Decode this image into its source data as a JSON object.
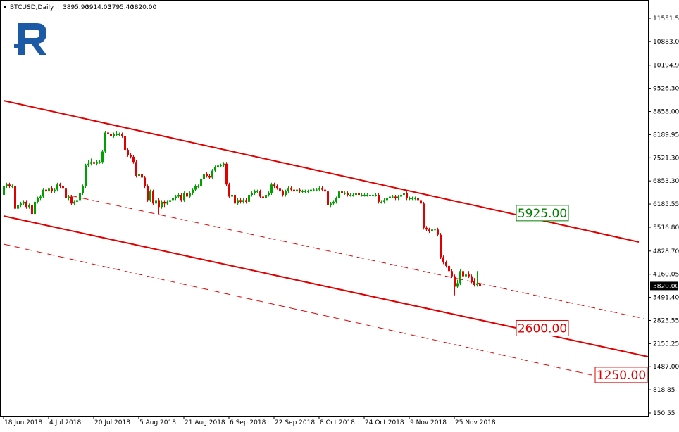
{
  "chart_data": {
    "type": "candlestick",
    "symbol": "BTCUSD,Daily",
    "header_values": [
      "3895.90",
      "3914.00",
      "3795.40",
      "3820.00"
    ],
    "up_color": "#00a000",
    "down_color": "#e00000",
    "ylim": [
      49,
      12039
    ],
    "yticks": [
      {
        "value": 11551.5,
        "label": "11551.50"
      },
      {
        "value": 10883.05,
        "label": "10883.05"
      },
      {
        "value": 10194.95,
        "label": "10194.95"
      },
      {
        "value": 9526.3,
        "label": "9526.30"
      },
      {
        "value": 8858,
        "label": "8858.00"
      },
      {
        "value": 8189.95,
        "label": "8189.95"
      },
      {
        "value": 7521.3,
        "label": "7521.30"
      },
      {
        "value": 6853.3,
        "label": "6853.30"
      },
      {
        "value": 6185.55,
        "label": "6185.55"
      },
      {
        "value": 5516.8,
        "label": "5516.80"
      },
      {
        "value": 4828.7,
        "label": "4828.70"
      },
      {
        "value": 4160.05,
        "label": "4160.05"
      },
      {
        "value": 3491.4,
        "label": "3491.40"
      },
      {
        "value": 2823.55,
        "label": "2823.55"
      },
      {
        "value": 2155.25,
        "label": "2155.25"
      },
      {
        "value": 1487,
        "label": "1487.00"
      },
      {
        "value": 818.85,
        "label": "818.85"
      },
      {
        "value": 150.55,
        "label": "150.55"
      }
    ],
    "last_price": {
      "value": 3820,
      "label": "3820.00"
    },
    "levels": [
      {
        "value": 5925,
        "label": "5925.00",
        "color": "#008000"
      },
      {
        "value": 2600,
        "label": "2600.00",
        "color": "#e00000"
      },
      {
        "value": 1250,
        "label": "1250.00",
        "color": "#e00000"
      }
    ],
    "categories": [
      "18 Jun 2018",
      null,
      null,
      null,
      null,
      null,
      null,
      null,
      null,
      null,
      null,
      null,
      null,
      null,
      null,
      null,
      "4 Jul 2018",
      null,
      null,
      null,
      null,
      null,
      null,
      null,
      null,
      null,
      null,
      null,
      null,
      null,
      null,
      null,
      "20 Jul 2018",
      null,
      null,
      null,
      null,
      null,
      null,
      null,
      null,
      null,
      null,
      null,
      null,
      null,
      null,
      null,
      "5 Aug 2018",
      null,
      null,
      null,
      null,
      null,
      null,
      null,
      null,
      null,
      null,
      null,
      null,
      null,
      null,
      null,
      "21 Aug 2018",
      null,
      null,
      null,
      null,
      null,
      null,
      null,
      null,
      null,
      null,
      null,
      null,
      null,
      null,
      null,
      "6 Sep 2018",
      null,
      null,
      null,
      null,
      null,
      null,
      null,
      null,
      null,
      null,
      null,
      null,
      null,
      null,
      null,
      "22 Sep 2018",
      null,
      null,
      null,
      null,
      null,
      null,
      null,
      null,
      null,
      null,
      null,
      null,
      null,
      null,
      null,
      "8 Oct 2018",
      null,
      null,
      null,
      null,
      null,
      null,
      null,
      null,
      null,
      null,
      null,
      null,
      null,
      null,
      null,
      "24 Oct 2018",
      null,
      null,
      null,
      null,
      null,
      null,
      null,
      null,
      null,
      null,
      null,
      null,
      null,
      null,
      null,
      "9 Nov 2018",
      null,
      null,
      null,
      null,
      null,
      null,
      null,
      null,
      null,
      null,
      null,
      null,
      null,
      null,
      null,
      "25 Nov 2018",
      null,
      null,
      null,
      null,
      null,
      null,
      null,
      null,
      null
    ],
    "ohlc": [
      [
        6450,
        6750,
        6400,
        6700
      ],
      [
        6700,
        6800,
        6650,
        6750
      ],
      [
        6750,
        6800,
        6650,
        6700
      ],
      [
        6700,
        6750,
        6650,
        6700
      ],
      [
        6700,
        6750,
        6000,
        6050
      ],
      [
        6050,
        6200,
        6000,
        6150
      ],
      [
        6150,
        6250,
        6100,
        6200
      ],
      [
        6200,
        6300,
        6150,
        6250
      ],
      [
        6250,
        6300,
        6050,
        6100
      ],
      [
        6100,
        6200,
        6050,
        6150
      ],
      [
        6150,
        6200,
        5850,
        5900
      ],
      [
        5900,
        6300,
        5850,
        6250
      ],
      [
        6250,
        6400,
        6200,
        6350
      ],
      [
        6350,
        6450,
        6300,
        6400
      ],
      [
        6400,
        6650,
        6350,
        6600
      ],
      [
        6600,
        6650,
        6500,
        6550
      ],
      [
        6550,
        6700,
        6500,
        6650
      ],
      [
        6650,
        6700,
        6500,
        6550
      ],
      [
        6550,
        6650,
        6500,
        6600
      ],
      [
        6600,
        6800,
        6550,
        6750
      ],
      [
        6750,
        6800,
        6650,
        6700
      ],
      [
        6700,
        6750,
        6600,
        6650
      ],
      [
        6650,
        6700,
        6300,
        6350
      ],
      [
        6350,
        6450,
        6300,
        6400
      ],
      [
        6400,
        6450,
        6150,
        6200
      ],
      [
        6200,
        6300,
        6150,
        6250
      ],
      [
        6250,
        6350,
        6200,
        6300
      ],
      [
        6300,
        6550,
        6250,
        6500
      ],
      [
        6500,
        6750,
        6450,
        6700
      ],
      [
        6700,
        7350,
        6650,
        7300
      ],
      [
        7300,
        7450,
        7250,
        7350
      ],
      [
        7350,
        7500,
        7300,
        7400
      ],
      [
        7400,
        7450,
        7300,
        7350
      ],
      [
        7350,
        7450,
        7300,
        7400
      ],
      [
        7400,
        7450,
        7350,
        7400
      ],
      [
        7400,
        7750,
        7350,
        7700
      ],
      [
        7700,
        8300,
        7650,
        8250
      ],
      [
        8250,
        8450,
        8150,
        8200
      ],
      [
        8200,
        8300,
        8100,
        8150
      ],
      [
        8150,
        8250,
        8100,
        8200
      ],
      [
        8200,
        8300,
        8150,
        8200
      ],
      [
        8200,
        8250,
        8150,
        8200
      ],
      [
        8200,
        8250,
        8100,
        8150
      ],
      [
        8150,
        8200,
        7700,
        7750
      ],
      [
        7750,
        7800,
        7550,
        7600
      ],
      [
        7600,
        7650,
        7500,
        7550
      ],
      [
        7550,
        7600,
        7350,
        7400
      ],
      [
        7400,
        7450,
        6950,
        7000
      ],
      [
        7000,
        7100,
        6950,
        7050
      ],
      [
        7050,
        7100,
        6900,
        6950
      ],
      [
        6950,
        7000,
        6650,
        6700
      ],
      [
        6700,
        6750,
        6250,
        6300
      ],
      [
        6300,
        6600,
        6250,
        6550
      ],
      [
        6550,
        6600,
        6150,
        6200
      ],
      [
        6200,
        6350,
        6150,
        6300
      ],
      [
        6300,
        6350,
        5900,
        6100
      ],
      [
        6100,
        6300,
        6050,
        6250
      ],
      [
        6250,
        6300,
        6100,
        6200
      ],
      [
        6200,
        6300,
        6150,
        6250
      ],
      [
        6250,
        6350,
        6200,
        6300
      ],
      [
        6300,
        6400,
        6250,
        6350
      ],
      [
        6350,
        6450,
        6300,
        6400
      ],
      [
        6400,
        6500,
        6350,
        6450
      ],
      [
        6450,
        6500,
        6250,
        6300
      ],
      [
        6300,
        6550,
        6250,
        6500
      ],
      [
        6500,
        6550,
        6350,
        6400
      ],
      [
        6400,
        6550,
        6350,
        6500
      ],
      [
        6500,
        6650,
        6450,
        6600
      ],
      [
        6600,
        6750,
        6550,
        6700
      ],
      [
        6700,
        6750,
        6650,
        6700
      ],
      [
        6700,
        6950,
        6650,
        6900
      ],
      [
        6900,
        7100,
        6850,
        7050
      ],
      [
        7050,
        7100,
        6950,
        7000
      ],
      [
        7000,
        7050,
        6900,
        6950
      ],
      [
        6950,
        7200,
        6900,
        7150
      ],
      [
        7150,
        7300,
        7100,
        7250
      ],
      [
        7250,
        7350,
        7200,
        7300
      ],
      [
        7300,
        7350,
        7250,
        7300
      ],
      [
        7300,
        7400,
        7250,
        7350
      ],
      [
        7350,
        7400,
        6700,
        6750
      ],
      [
        6750,
        6800,
        6350,
        6400
      ],
      [
        6400,
        6500,
        6350,
        6450
      ],
      [
        6450,
        6500,
        6150,
        6200
      ],
      [
        6200,
        6350,
        6150,
        6300
      ],
      [
        6300,
        6350,
        6200,
        6250
      ],
      [
        6250,
        6350,
        6200,
        6300
      ],
      [
        6300,
        6350,
        6200,
        6250
      ],
      [
        6250,
        6500,
        6200,
        6450
      ],
      [
        6450,
        6550,
        6400,
        6500
      ],
      [
        6500,
        6600,
        6450,
        6550
      ],
      [
        6550,
        6600,
        6500,
        6550
      ],
      [
        6550,
        6600,
        6350,
        6400
      ],
      [
        6400,
        6450,
        6300,
        6350
      ],
      [
        6350,
        6500,
        6300,
        6450
      ],
      [
        6450,
        6550,
        6400,
        6500
      ],
      [
        6500,
        6800,
        6450,
        6750
      ],
      [
        6750,
        6800,
        6650,
        6700
      ],
      [
        6700,
        6750,
        6600,
        6650
      ],
      [
        6650,
        6700,
        6500,
        6550
      ],
      [
        6550,
        6600,
        6400,
        6450
      ],
      [
        6450,
        6600,
        6400,
        6550
      ],
      [
        6550,
        6700,
        6500,
        6650
      ],
      [
        6650,
        6700,
        6550,
        6600
      ],
      [
        6600,
        6650,
        6500,
        6550
      ],
      [
        6550,
        6650,
        6500,
        6600
      ],
      [
        6600,
        6650,
        6500,
        6550
      ],
      [
        6550,
        6600,
        6500,
        6550
      ],
      [
        6550,
        6600,
        6500,
        6550
      ],
      [
        6550,
        6600,
        6500,
        6550
      ],
      [
        6550,
        6650,
        6500,
        6600
      ],
      [
        6600,
        6650,
        6550,
        6600
      ],
      [
        6600,
        6650,
        6550,
        6600
      ],
      [
        6600,
        6700,
        6550,
        6650
      ],
      [
        6650,
        6700,
        6550,
        6600
      ],
      [
        6600,
        6650,
        6500,
        6550
      ],
      [
        6550,
        6600,
        6100,
        6150
      ],
      [
        6150,
        6250,
        6100,
        6200
      ],
      [
        6200,
        6300,
        6150,
        6250
      ],
      [
        6250,
        6400,
        6200,
        6350
      ],
      [
        6350,
        6800,
        6300,
        6550
      ],
      [
        6550,
        6600,
        6450,
        6500
      ],
      [
        6500,
        6550,
        6450,
        6500
      ],
      [
        6500,
        6550,
        6400,
        6450
      ],
      [
        6450,
        6500,
        6400,
        6450
      ],
      [
        6450,
        6500,
        6400,
        6450
      ],
      [
        6450,
        6550,
        6400,
        6500
      ],
      [
        6500,
        6550,
        6400,
        6450
      ],
      [
        6450,
        6500,
        6400,
        6450
      ],
      [
        6450,
        6500,
        6400,
        6450
      ],
      [
        6450,
        6500,
        6400,
        6450
      ],
      [
        6450,
        6500,
        6400,
        6450
      ],
      [
        6450,
        6500,
        6400,
        6450
      ],
      [
        6450,
        6500,
        6400,
        6450
      ],
      [
        6450,
        6500,
        6200,
        6250
      ],
      [
        6250,
        6300,
        6200,
        6250
      ],
      [
        6250,
        6350,
        6200,
        6300
      ],
      [
        6300,
        6400,
        6250,
        6350
      ],
      [
        6350,
        6450,
        6300,
        6400
      ],
      [
        6400,
        6450,
        6350,
        6400
      ],
      [
        6400,
        6450,
        6300,
        6350
      ],
      [
        6350,
        6450,
        6300,
        6400
      ],
      [
        6400,
        6500,
        6350,
        6450
      ],
      [
        6450,
        6550,
        6400,
        6500
      ],
      [
        6500,
        6550,
        6300,
        6350
      ],
      [
        6350,
        6400,
        6300,
        6350
      ],
      [
        6350,
        6400,
        6300,
        6350
      ],
      [
        6350,
        6400,
        6300,
        6350
      ],
      [
        6350,
        6400,
        6250,
        6300
      ],
      [
        6300,
        6350,
        6150,
        6200
      ],
      [
        6200,
        6250,
        5450,
        5500
      ],
      [
        5500,
        5550,
        5400,
        5450
      ],
      [
        5450,
        5500,
        5350,
        5400
      ],
      [
        5400,
        5600,
        5350,
        5450
      ],
      [
        5450,
        5500,
        5400,
        5450
      ],
      [
        5450,
        5500,
        5250,
        5300
      ],
      [
        5300,
        5350,
        4600,
        4650
      ],
      [
        4650,
        4700,
        4450,
        4500
      ],
      [
        4500,
        4550,
        4350,
        4400
      ],
      [
        4400,
        4450,
        4200,
        4250
      ],
      [
        4250,
        4300,
        4050,
        4100
      ],
      [
        4100,
        4150,
        3550,
        3800
      ],
      [
        3800,
        4000,
        3750,
        3900
      ],
      [
        3900,
        4300,
        3850,
        4250
      ],
      [
        4250,
        4350,
        4050,
        4100
      ],
      [
        4100,
        4200,
        3950,
        4150
      ],
      [
        4150,
        4250,
        4050,
        4100
      ],
      [
        4100,
        4150,
        3900,
        3950
      ],
      [
        3950,
        4050,
        3800,
        3850
      ],
      [
        3850,
        4250,
        3800,
        3895.9
      ],
      [
        3895.9,
        3914,
        3795.4,
        3820
      ]
    ]
  }
}
